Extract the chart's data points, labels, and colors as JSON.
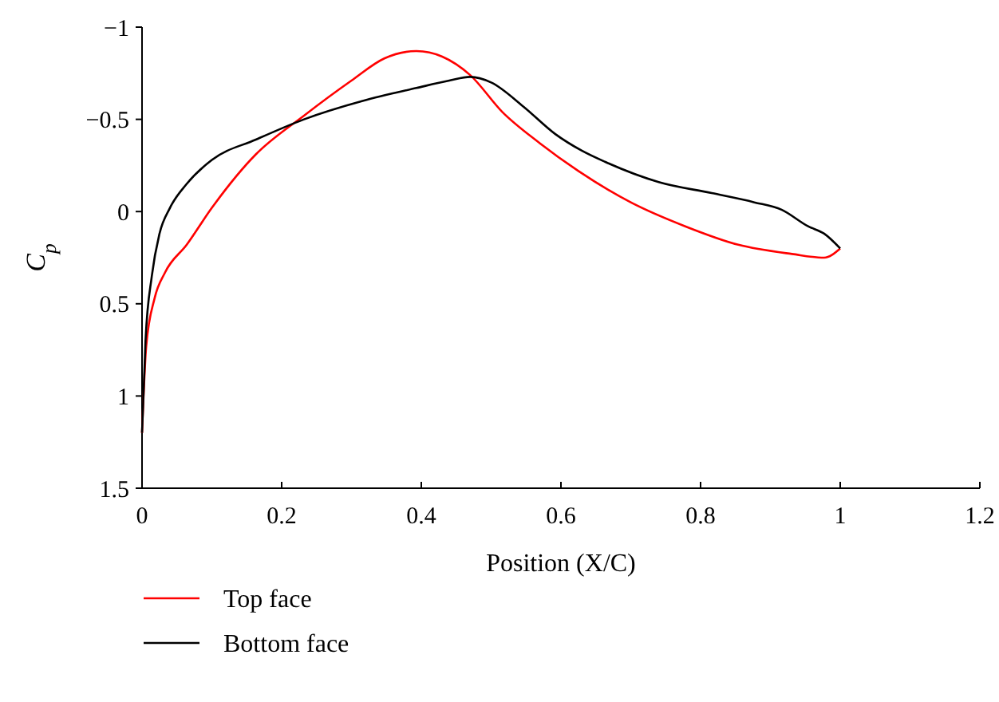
{
  "chart_data": {
    "type": "line",
    "xlabel": "Position (X/C)",
    "ylabel": "C$_{p}$",
    "xlim": [
      0,
      1.2
    ],
    "xticks": [
      0,
      0.2,
      0.4,
      0.6,
      0.8,
      1,
      1.2
    ],
    "ylim": [
      1.5,
      -1
    ],
    "yticks": [
      -1,
      -0.5,
      0,
      0.5,
      1,
      1.5
    ],
    "grid": false,
    "legend": "bottom left",
    "marker": "none",
    "line_style": "solid",
    "series": [
      {
        "name": "Top face",
        "color": "#ff0000",
        "x": [
          0,
          0.006,
          0.018,
          0.033,
          0.064,
          0.1,
          0.163,
          0.232,
          0.3,
          0.347,
          0.393,
          0.43,
          0.47,
          0.516,
          0.57,
          0.625,
          0.7,
          0.778,
          0.854,
          0.931,
          0.977,
          1.0
        ],
        "values": [
          1.2,
          0.73,
          0.47,
          0.33,
          0.18,
          -0.02,
          -0.31,
          -0.52,
          -0.71,
          -0.83,
          -0.87,
          -0.84,
          -0.74,
          -0.54,
          -0.37,
          -0.22,
          -0.05,
          0.08,
          0.18,
          0.23,
          0.25,
          0.2
        ]
      },
      {
        "name": "Bottom face",
        "color": "#000000",
        "x": [
          0,
          0.005,
          0.014,
          0.025,
          0.04,
          0.064,
          0.1,
          0.163,
          0.232,
          0.316,
          0.393,
          0.44,
          0.47,
          0.5,
          0.546,
          0.592,
          0.63,
          0.663,
          0.74,
          0.816,
          0.877,
          0.916,
          0.954,
          0.977,
          1.0
        ],
        "values": [
          1.2,
          0.7,
          0.35,
          0.12,
          -0.02,
          -0.15,
          -0.28,
          -0.39,
          -0.5,
          -0.6,
          -0.67,
          -0.71,
          -0.73,
          -0.7,
          -0.57,
          -0.42,
          -0.33,
          -0.27,
          -0.16,
          -0.1,
          -0.05,
          -0.01,
          0.08,
          0.12,
          0.2
        ]
      }
    ]
  }
}
